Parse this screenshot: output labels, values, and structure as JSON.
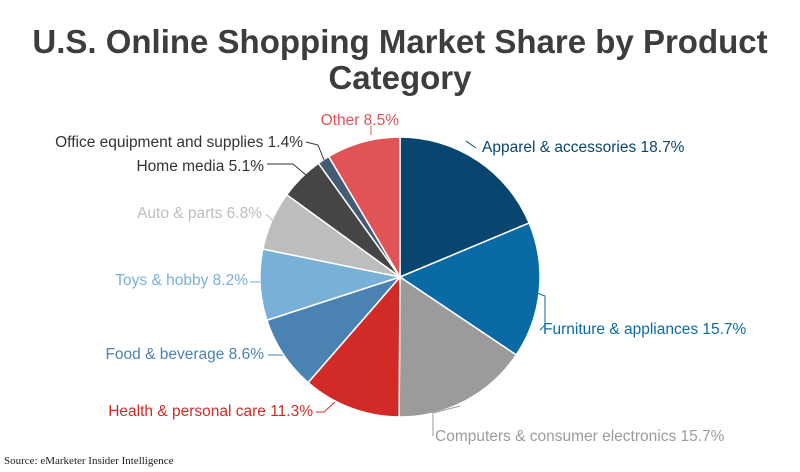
{
  "chart_data": {
    "type": "pie",
    "title_line1": "U.S. Online Shopping Market Share by Product",
    "title_line2": "Category",
    "source": "Source: eMarketer Insider Intelligence",
    "slices": [
      {
        "label": "Apparel & accessories",
        "value": 18.7,
        "display": "Apparel & accessories 18.7%",
        "color": "#08456f"
      },
      {
        "label": "Furniture & appliances",
        "value": 15.7,
        "display": "Furniture & appliances 15.7%",
        "color": "#0a6aa6"
      },
      {
        "label": "Computers & consumer electronics",
        "value": 15.7,
        "display": "Computers & consumer electronics 15.7%",
        "color": "#9b9b9b"
      },
      {
        "label": "Health & personal care",
        "value": 11.3,
        "display": "Health & personal care 11.3%",
        "color": "#d22b27"
      },
      {
        "label": "Food & beverage",
        "value": 8.6,
        "display": "Food & beverage 8.6%",
        "color": "#4a82b2"
      },
      {
        "label": "Toys & hobby",
        "value": 8.2,
        "display": "Toys & hobby 8.2%",
        "color": "#78b0d8"
      },
      {
        "label": "Auto & parts",
        "value": 6.8,
        "display": "Auto & parts 6.8%",
        "color": "#bdbdbd"
      },
      {
        "label": "Home media",
        "value": 5.1,
        "display": "Home media 5.1%",
        "color": "#454545"
      },
      {
        "label": "Office equipment and supplies",
        "value": 1.4,
        "display": "Office equipment and supplies 1.4%",
        "color": "#455a73"
      },
      {
        "label": "Other",
        "value": 8.5,
        "display": "Other 8.5%",
        "color": "#e05456"
      }
    ],
    "label_colors": [
      "#08456f",
      "#0a6aa6",
      "#9b9b9b",
      "#d22b27",
      "#4a82b2",
      "#78b0d8",
      "#bdbdbd",
      "#333333",
      "#333333",
      "#e05456"
    ],
    "legend": "none",
    "start_angle": "12 o'clock, clockwise"
  }
}
